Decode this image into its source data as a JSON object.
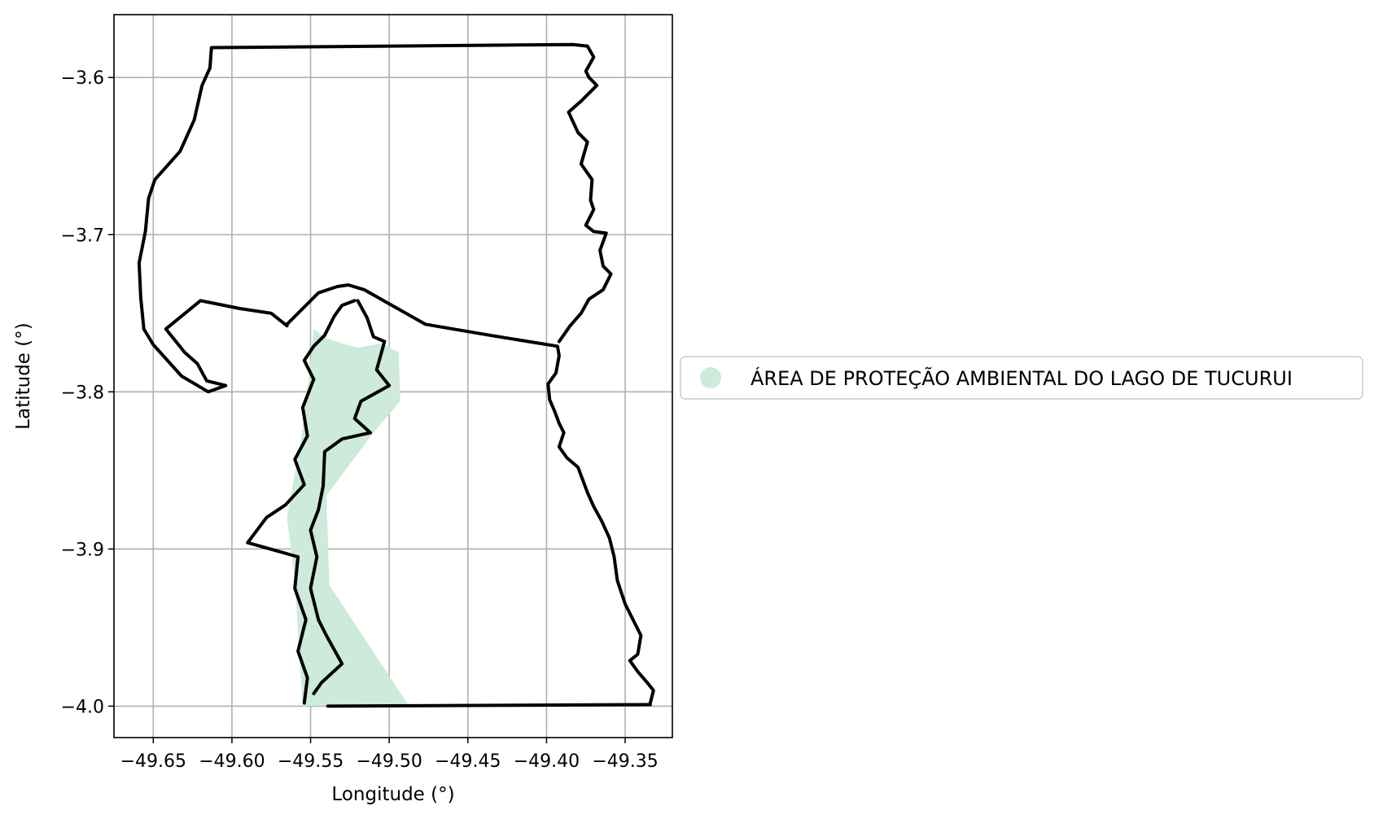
{
  "chart_data": {
    "type": "map",
    "xlabel": "Longitude (°)",
    "ylabel": "Latitude (°)",
    "xlim": [
      -49.675,
      -49.32
    ],
    "ylim": [
      -4.02,
      -3.56
    ],
    "grid": true,
    "x_ticks": [
      -49.65,
      -49.6,
      -49.55,
      -49.5,
      -49.45,
      -49.4,
      -49.35
    ],
    "x_tick_labels": [
      "−49.65",
      "−49.60",
      "−49.55",
      "−49.50",
      "−49.45",
      "−49.40",
      "−49.35"
    ],
    "y_ticks": [
      -3.6,
      -3.7,
      -3.8,
      -3.9,
      -4.0
    ],
    "y_tick_labels": [
      "−3.6",
      "−3.7",
      "−3.8",
      "−3.9",
      "−4.0"
    ],
    "legend": {
      "placement": "center-right outside",
      "entries": [
        {
          "label": "ÁREA DE PROTEÇÃO AMBIENTAL DO LAGO DE TUCURUI",
          "color": "#cdeadb"
        }
      ]
    },
    "protected_area": {
      "name": "ÁREA DE PROTEÇÃO AMBIENTAL DO LAGO DE TUCURUI",
      "color": "#cdeadb",
      "coords": [
        [
          -49.548,
          -3.76
        ],
        [
          -49.54,
          -3.766
        ],
        [
          -49.52,
          -3.772
        ],
        [
          -49.505,
          -3.769
        ],
        [
          -49.494,
          -3.775
        ],
        [
          -49.493,
          -3.806
        ],
        [
          -49.51,
          -3.826
        ],
        [
          -49.54,
          -3.866
        ],
        [
          -49.538,
          -3.923
        ],
        [
          -49.488,
          -3.999
        ],
        [
          -49.555,
          -4.0
        ],
        [
          -49.556,
          -3.985
        ],
        [
          -49.56,
          -3.92
        ],
        [
          -49.565,
          -3.88
        ],
        [
          -49.556,
          -3.83
        ],
        [
          -49.551,
          -3.79
        ]
      ]
    },
    "boundaries": [
      {
        "name": "north-outline",
        "coords": [
          [
            -49.565,
            -3.757
          ],
          [
            -49.545,
            -3.737
          ],
          [
            -49.533,
            -3.733
          ],
          [
            -49.526,
            -3.732
          ],
          [
            -49.516,
            -3.735
          ],
          [
            -49.5,
            -3.744
          ],
          [
            -49.477,
            -3.757
          ],
          [
            -49.436,
            -3.764
          ],
          [
            -49.393,
            -3.771
          ],
          [
            -49.392,
            -3.777
          ],
          [
            -49.394,
            -3.788
          ],
          [
            -49.399,
            -3.795
          ],
          [
            -49.398,
            -3.805
          ],
          [
            -49.395,
            -3.812
          ],
          [
            -49.392,
            -3.82
          ],
          [
            -49.389,
            -3.826
          ],
          [
            -49.392,
            -3.835
          ],
          [
            -49.387,
            -3.842
          ],
          [
            -49.38,
            -3.848
          ],
          [
            -49.377,
            -3.856
          ],
          [
            -49.374,
            -3.864
          ],
          [
            -49.37,
            -3.873
          ],
          [
            -49.365,
            -3.882
          ],
          [
            -49.36,
            -3.893
          ],
          [
            -49.357,
            -3.905
          ],
          [
            -49.355,
            -3.92
          ],
          [
            -49.35,
            -3.935
          ],
          [
            -49.345,
            -3.945
          ],
          [
            -49.34,
            -3.955
          ],
          [
            -49.342,
            -3.967
          ],
          [
            -49.347,
            -3.971
          ],
          [
            -49.342,
            -3.978
          ],
          [
            -49.336,
            -3.985
          ],
          [
            -49.332,
            -3.99
          ],
          [
            -49.334,
            -3.998
          ]
        ]
      },
      {
        "name": "upper-outline",
        "coords": [
          [
            -49.565,
            -3.758
          ],
          [
            -49.575,
            -3.75
          ],
          [
            -49.595,
            -3.747
          ],
          [
            -49.62,
            -3.742
          ],
          [
            -49.642,
            -3.76
          ],
          [
            -49.63,
            -3.775
          ],
          [
            -49.622,
            -3.782
          ],
          [
            -49.616,
            -3.793
          ],
          [
            -49.604,
            -3.796
          ],
          [
            -49.615,
            -3.8
          ],
          [
            -49.632,
            -3.79
          ],
          [
            -49.65,
            -3.77
          ],
          [
            -49.656,
            -3.76
          ],
          [
            -49.658,
            -3.74
          ],
          [
            -49.659,
            -3.718
          ],
          [
            -49.655,
            -3.698
          ],
          [
            -49.653,
            -3.677
          ],
          [
            -49.649,
            -3.665
          ],
          [
            -49.633,
            -3.647
          ],
          [
            -49.624,
            -3.627
          ],
          [
            -49.619,
            -3.605
          ],
          [
            -49.614,
            -3.594
          ],
          [
            -49.613,
            -3.581
          ],
          [
            -49.383,
            -3.579
          ],
          [
            -49.374,
            -3.58
          ],
          [
            -49.37,
            -3.587
          ],
          [
            -49.375,
            -3.596
          ],
          [
            -49.373,
            -3.6
          ],
          [
            -49.368,
            -3.605
          ],
          [
            -49.378,
            -3.615
          ],
          [
            -49.386,
            -3.622
          ],
          [
            -49.38,
            -3.635
          ],
          [
            -49.374,
            -3.641
          ],
          [
            -49.378,
            -3.655
          ],
          [
            -49.371,
            -3.665
          ],
          [
            -49.372,
            -3.678
          ],
          [
            -49.37,
            -3.684
          ],
          [
            -49.375,
            -3.694
          ],
          [
            -49.37,
            -3.698
          ],
          [
            -49.362,
            -3.699
          ],
          [
            -49.366,
            -3.71
          ],
          [
            -49.364,
            -3.72
          ],
          [
            -49.359,
            -3.725
          ],
          [
            -49.364,
            -3.735
          ],
          [
            -49.373,
            -3.741
          ],
          [
            -49.378,
            -3.75
          ],
          [
            -49.385,
            -3.758
          ],
          [
            -49.392,
            -3.768
          ]
        ]
      },
      {
        "name": "inner-west-shore",
        "coords": [
          [
            -49.522,
            -3.742
          ],
          [
            -49.53,
            -3.745
          ],
          [
            -49.535,
            -3.752
          ],
          [
            -49.541,
            -3.764
          ],
          [
            -49.548,
            -3.771
          ],
          [
            -49.554,
            -3.78
          ],
          [
            -49.548,
            -3.792
          ],
          [
            -49.555,
            -3.81
          ],
          [
            -49.552,
            -3.828
          ],
          [
            -49.56,
            -3.843
          ],
          [
            -49.554,
            -3.859
          ],
          [
            -49.566,
            -3.872
          ],
          [
            -49.578,
            -3.88
          ],
          [
            -49.59,
            -3.896
          ],
          [
            -49.572,
            -3.901
          ],
          [
            -49.558,
            -3.905
          ],
          [
            -49.56,
            -3.925
          ],
          [
            -49.553,
            -3.945
          ],
          [
            -49.558,
            -3.965
          ],
          [
            -49.552,
            -3.982
          ],
          [
            -49.554,
            -3.998
          ]
        ]
      },
      {
        "name": "inner-east-shore",
        "coords": [
          [
            -49.52,
            -3.742
          ],
          [
            -49.514,
            -3.753
          ],
          [
            -49.51,
            -3.765
          ],
          [
            -49.503,
            -3.768
          ],
          [
            -49.508,
            -3.786
          ],
          [
            -49.5,
            -3.796
          ],
          [
            -49.518,
            -3.806
          ],
          [
            -49.522,
            -3.817
          ],
          [
            -49.512,
            -3.826
          ],
          [
            -49.53,
            -3.83
          ],
          [
            -49.541,
            -3.838
          ],
          [
            -49.542,
            -3.86
          ],
          [
            -49.545,
            -3.875
          ],
          [
            -49.55,
            -3.888
          ],
          [
            -49.546,
            -3.905
          ],
          [
            -49.55,
            -3.925
          ],
          [
            -49.545,
            -3.945
          ],
          [
            -49.54,
            -3.955
          ],
          [
            -49.53,
            -3.973
          ],
          [
            -49.543,
            -3.985
          ],
          [
            -49.548,
            -3.992
          ]
        ]
      },
      {
        "name": "south-outline",
        "coords": [
          [
            -49.539,
            -4.0
          ],
          [
            -49.334,
            -3.999
          ]
        ]
      }
    ]
  }
}
